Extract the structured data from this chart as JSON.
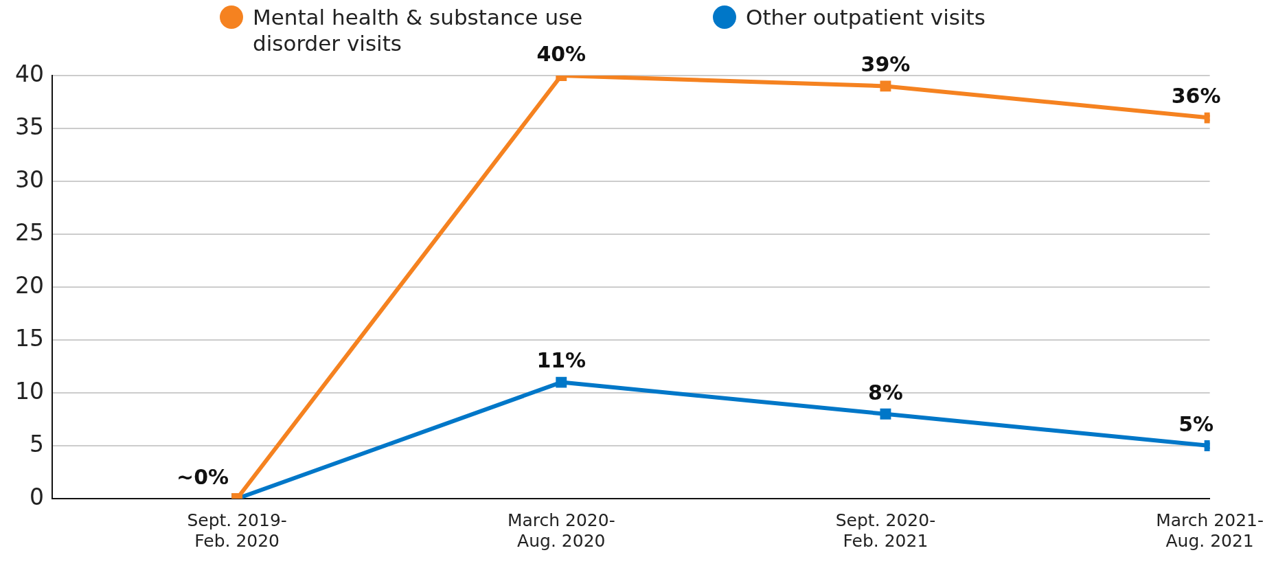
{
  "chart_data": {
    "type": "line",
    "categories": [
      "Sept. 2019-\nFeb. 2020",
      "March 2020-\nAug. 2020",
      "Sept. 2020-\nFeb. 2021",
      "March 2021-\nAug. 2021"
    ],
    "ylim": [
      0,
      40
    ],
    "yticks": [
      0,
      5,
      10,
      15,
      20,
      25,
      30,
      35,
      40
    ],
    "series": [
      {
        "name": "Mental health & substance use disorder visits",
        "color": "#f58220",
        "values": [
          0,
          40,
          39,
          36
        ],
        "value_labels": [
          "~0%",
          "40%",
          "39%",
          "36%"
        ]
      },
      {
        "name": "Other outpatient visits",
        "color": "#0077c8",
        "values": [
          0,
          11,
          8,
          5
        ],
        "value_labels": [
          null,
          "11%",
          "8%",
          "5%"
        ]
      }
    ],
    "marker": "square",
    "line_style": "solid",
    "grid": "y",
    "legend": "top"
  }
}
